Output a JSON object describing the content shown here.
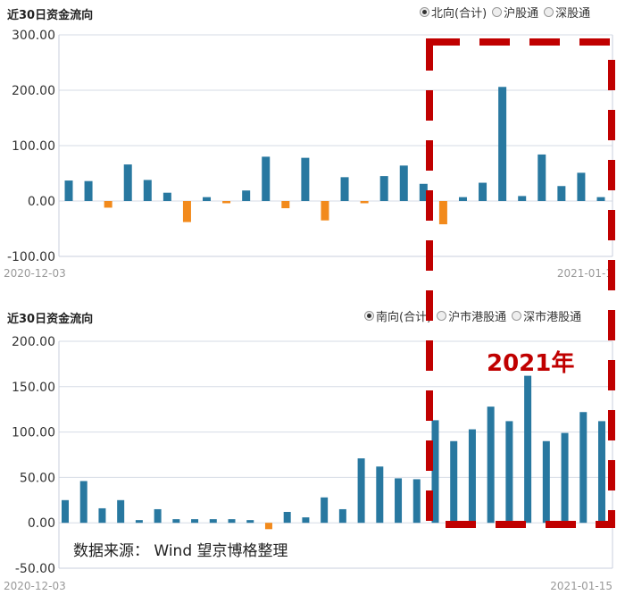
{
  "colors": {
    "positive": "#2878a0",
    "negative": "#f28a1c",
    "grid": "#d6dbe6",
    "highlight": "#c00000"
  },
  "top": {
    "title": "近30日资金流向",
    "options": [
      {
        "label": "北向(合计)",
        "checked": true
      },
      {
        "label": "沪股通",
        "checked": false
      },
      {
        "label": "深股通",
        "checked": false
      }
    ]
  },
  "bottom": {
    "title": "近30日资金流向",
    "options": [
      {
        "label": "南向(合计)",
        "checked": true
      },
      {
        "label": "沪市港股通",
        "checked": false
      },
      {
        "label": "深市港股通",
        "checked": false
      }
    ]
  },
  "annotation": {
    "year": "2021年",
    "source": "数据来源： Wind  望京博格整理"
  },
  "chart_data": [
    {
      "type": "bar",
      "title": "近30日资金流向",
      "series_label": "北向(合计)",
      "ylim": [
        -100,
        300
      ],
      "yticks": [
        "300.00",
        "200.00",
        "100.00",
        "0.00",
        "-100.00"
      ],
      "ytick_values": [
        300,
        200,
        100,
        0,
        -100
      ],
      "x_start_label": "2020-12-03",
      "x_end_label": "2021-01-1",
      "values": [
        37,
        36,
        -12,
        66,
        38,
        15,
        -38,
        7,
        -4,
        19,
        80,
        -13,
        78,
        -35,
        43,
        -4,
        45,
        64,
        31,
        -42,
        7,
        33,
        206,
        9,
        84,
        27,
        51,
        7
      ],
      "grid": true
    },
    {
      "type": "bar",
      "title": "近30日资金流向",
      "series_label": "南向(合计)",
      "ylim": [
        -50,
        200
      ],
      "yticks": [
        "200.00",
        "150.00",
        "100.00",
        "50.00",
        "0.00",
        "-50.00"
      ],
      "ytick_values": [
        200,
        150,
        100,
        50,
        0,
        -50
      ],
      "x_start_label": "2020-12-03",
      "x_end_label": "2021-01-15",
      "values": [
        25,
        46,
        16,
        25,
        3,
        15,
        4,
        4,
        4,
        4,
        3,
        -7,
        12,
        6,
        28,
        15,
        71,
        62,
        49,
        48,
        113,
        90,
        103,
        128,
        112,
        162,
        90,
        99,
        122,
        112
      ],
      "grid": true
    }
  ]
}
